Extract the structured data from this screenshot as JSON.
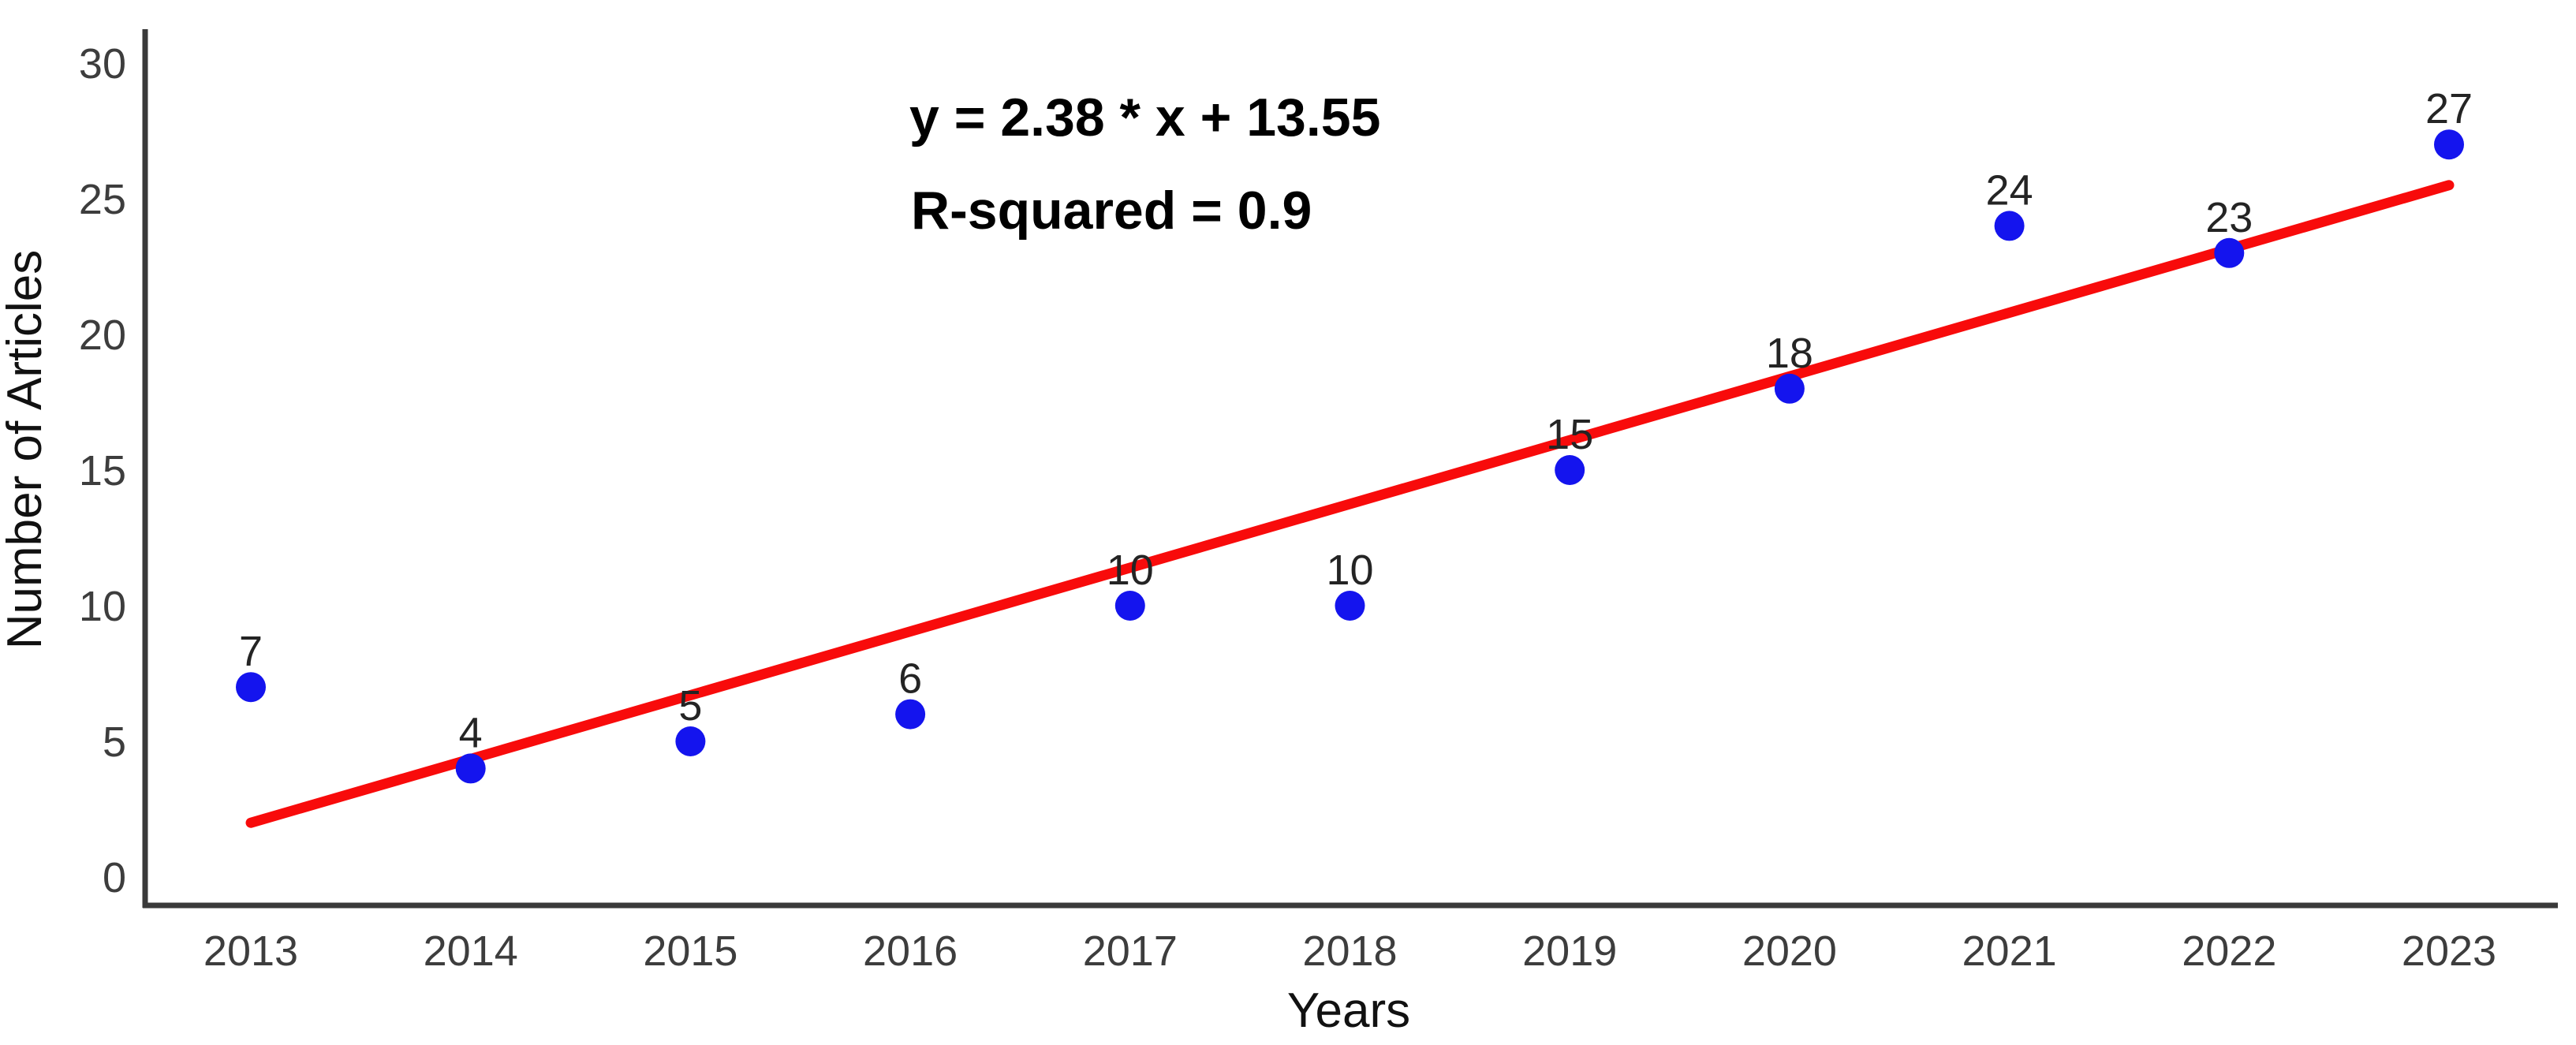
{
  "chart_data": {
    "type": "scatter",
    "title": "",
    "xlabel": "Years",
    "ylabel": "Number of Articles",
    "x": [
      2013,
      2014,
      2015,
      2016,
      2017,
      2018,
      2019,
      2020,
      2021,
      2022,
      2023
    ],
    "values": [
      7,
      4,
      5,
      6,
      10,
      10,
      15,
      18,
      24,
      23,
      27
    ],
    "x_ticks": [
      "2013",
      "2014",
      "2015",
      "2016",
      "2017",
      "2018",
      "2019",
      "2020",
      "2021",
      "2022",
      "2023"
    ],
    "y_ticks": [
      0,
      5,
      10,
      15,
      20,
      25,
      30
    ],
    "ylim": [
      0,
      30
    ],
    "grid": false,
    "legend": "none",
    "annotations": [
      "y = 2.38 * x + 13.55",
      "R-squared = 0.9"
    ],
    "trendline": {
      "slope": 2.38,
      "intercept": 13.55,
      "r_squared": 0.9,
      "x_start": 2013.0,
      "y_start": 2.0,
      "x_end": 2023.0,
      "y_end": 25.5
    },
    "colors": {
      "point": "#1414ee",
      "trend": "#f80b0b",
      "axis": "#3a3a3a",
      "tick_text": "#3d3d3d",
      "point_label_text": "#242424",
      "axis_title_text": "#111111",
      "annotation_text": "#000000",
      "background": "#ffffff"
    }
  }
}
